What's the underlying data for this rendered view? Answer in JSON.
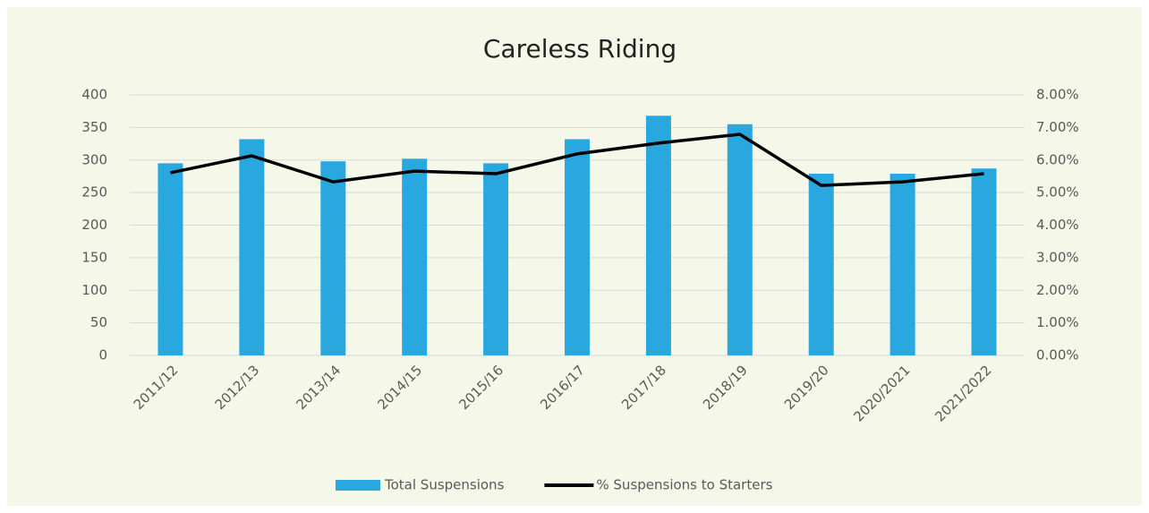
{
  "chart_data": {
    "type": "bar",
    "title": "Careless Riding",
    "categories": [
      "2011/12",
      "2012/13",
      "2013/14",
      "2014/15",
      "2015/16",
      "2016/17",
      "2017/18",
      "2018/19",
      "2019/20",
      "2020/2021",
      "2021/2022"
    ],
    "series": [
      {
        "name": "Total Suspensions",
        "type": "bar",
        "color": "#29a8e0",
        "values": [
          295,
          332,
          298,
          302,
          295,
          332,
          368,
          355,
          279,
          279,
          287
        ]
      },
      {
        "name": "% Suspensions to Starters",
        "type": "line",
        "axis": "y2",
        "color": "#000000",
        "values": [
          5.61,
          6.13,
          5.33,
          5.66,
          5.58,
          6.19,
          6.52,
          6.79,
          5.22,
          5.33,
          5.58
        ]
      }
    ],
    "ylim": [
      0,
      400
    ],
    "yticks": [
      0,
      50,
      100,
      150,
      200,
      250,
      300,
      350,
      400
    ],
    "y2lim": [
      0,
      8
    ],
    "y2ticks": [
      {
        "value": 0,
        "label": "0.00%"
      },
      {
        "value": 1,
        "label": "1.00%"
      },
      {
        "value": 2,
        "label": "2.00%"
      },
      {
        "value": 3,
        "label": "3.00%"
      },
      {
        "value": 4,
        "label": "4.00%"
      },
      {
        "value": 5,
        "label": "5.00%"
      },
      {
        "value": 6,
        "label": "6.00%"
      },
      {
        "value": 7,
        "label": "7.00%"
      },
      {
        "value": 8,
        "label": "8.00%"
      }
    ],
    "grid": true,
    "legend": "bottom"
  }
}
